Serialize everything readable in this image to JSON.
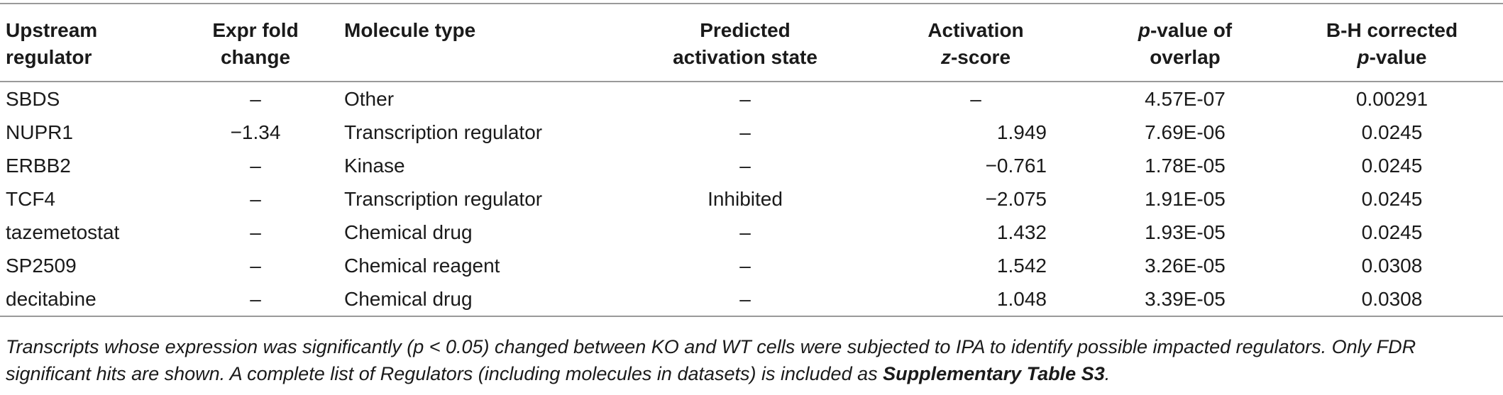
{
  "table": {
    "headers": [
      [
        "Upstream",
        "regulator"
      ],
      [
        "Expr fold",
        "change"
      ],
      [
        "Molecule type",
        ""
      ],
      [
        "Predicted",
        "activation state"
      ],
      [
        "Activation",
        "z-score"
      ],
      [
        "p-value of",
        "overlap"
      ],
      [
        "B-H corrected",
        "p-value"
      ]
    ],
    "header_italic_parts": {
      "z": "z",
      "p": "p"
    },
    "rows": [
      [
        "SBDS",
        "–",
        "Other",
        "–",
        "–",
        "4.57E-07",
        "0.00291"
      ],
      [
        "NUPR1",
        "−1.34",
        "Transcription regulator",
        "–",
        "1.949",
        "7.69E-06",
        "0.0245"
      ],
      [
        "ERBB2",
        "–",
        "Kinase",
        "–",
        "−0.761",
        "1.78E-05",
        "0.0245"
      ],
      [
        "TCF4",
        "–",
        "Transcription regulator",
        "Inhibited",
        "−2.075",
        "1.91E-05",
        "0.0245"
      ],
      [
        "tazemetostat",
        "–",
        "Chemical drug",
        "–",
        "1.432",
        "1.93E-05",
        "0.0245"
      ],
      [
        "SP2509",
        "–",
        "Chemical reagent",
        "–",
        "1.542",
        "3.26E-05",
        "0.0308"
      ],
      [
        "decitabine",
        "–",
        "Chemical drug",
        "–",
        "1.048",
        "3.39E-05",
        "0.0308"
      ]
    ]
  },
  "caption": {
    "text_before": "Transcripts whose expression was significantly (p < 0.05) changed between KO and WT cells were subjected to IPA to identify possible impacted regulators. Only FDR significant hits are shown. A complete list of Regulators (including molecules in datasets) is included as ",
    "bold_ref": "Supplementary Table S3",
    "text_after": "."
  }
}
